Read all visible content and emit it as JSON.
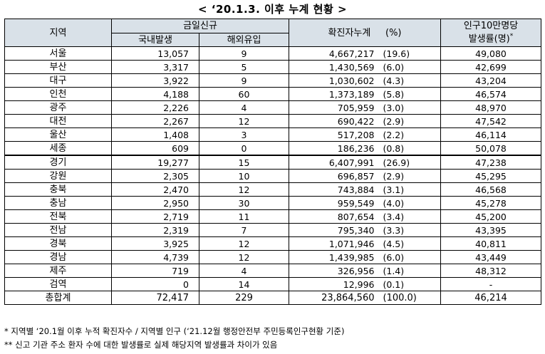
{
  "title": "< ‘20.1.3. 이후 누계 현황 >",
  "headers": {
    "region": "지역",
    "today_new": "금일신규",
    "domestic": "국내발생",
    "overseas": "해외유입",
    "cumulative": "확진자누계",
    "percent": "(%)",
    "rate_line1": "인구10만명당",
    "rate_line2": "발생률(명)",
    "rate_mark": "*"
  },
  "rows": [
    {
      "region": "서울",
      "domestic": "13,057",
      "overseas": "9",
      "cumulative": "4,667,217",
      "percent": "(19.6)",
      "rate": "49,080"
    },
    {
      "region": "부산",
      "domestic": "3,317",
      "overseas": "5",
      "cumulative": "1,430,569",
      "percent": "(6.0)",
      "rate": "42,699"
    },
    {
      "region": "대구",
      "domestic": "3,922",
      "overseas": "9",
      "cumulative": "1,030,602",
      "percent": "(4.3)",
      "rate": "43,204"
    },
    {
      "region": "인천",
      "domestic": "4,188",
      "overseas": "60",
      "cumulative": "1,373,189",
      "percent": "(5.8)",
      "rate": "46,574"
    },
    {
      "region": "광주",
      "domestic": "2,226",
      "overseas": "4",
      "cumulative": "705,959",
      "percent": "(3.0)",
      "rate": "48,970"
    },
    {
      "region": "대전",
      "domestic": "2,267",
      "overseas": "12",
      "cumulative": "690,422",
      "percent": "(2.9)",
      "rate": "47,542"
    },
    {
      "region": "울산",
      "domestic": "1,408",
      "overseas": "3",
      "cumulative": "517,208",
      "percent": "(2.2)",
      "rate": "46,114"
    },
    {
      "region": "세종",
      "domestic": "609",
      "overseas": "0",
      "cumulative": "186,236",
      "percent": "(0.8)",
      "rate": "50,078"
    },
    {
      "region": "경기",
      "domestic": "19,277",
      "overseas": "15",
      "cumulative": "6,407,991",
      "percent": "(26.9)",
      "rate": "47,238"
    },
    {
      "region": "강원",
      "domestic": "2,305",
      "overseas": "10",
      "cumulative": "696,857",
      "percent": "(2.9)",
      "rate": "45,295"
    },
    {
      "region": "충북",
      "domestic": "2,470",
      "overseas": "12",
      "cumulative": "743,884",
      "percent": "(3.1)",
      "rate": "46,568"
    },
    {
      "region": "충남",
      "domestic": "2,950",
      "overseas": "30",
      "cumulative": "959,549",
      "percent": "(4.0)",
      "rate": "45,278"
    },
    {
      "region": "전북",
      "domestic": "2,719",
      "overseas": "11",
      "cumulative": "807,654",
      "percent": "(3.4)",
      "rate": "45,200"
    },
    {
      "region": "전남",
      "domestic": "2,319",
      "overseas": "7",
      "cumulative": "795,340",
      "percent": "(3.3)",
      "rate": "43,395"
    },
    {
      "region": "경북",
      "domestic": "3,925",
      "overseas": "12",
      "cumulative": "1,071,946",
      "percent": "(4.5)",
      "rate": "40,811"
    },
    {
      "region": "경남",
      "domestic": "4,739",
      "overseas": "12",
      "cumulative": "1,439,985",
      "percent": "(6.0)",
      "rate": "43,449"
    },
    {
      "region": "제주",
      "domestic": "719",
      "overseas": "4",
      "cumulative": "326,956",
      "percent": "(1.4)",
      "rate": "48,312"
    },
    {
      "region": "검역",
      "domestic": "0",
      "overseas": "14",
      "cumulative": "12,996",
      "percent": "(0.1)",
      "rate": "-"
    }
  ],
  "total": {
    "region": "총합계",
    "domestic": "72,417",
    "overseas": "229",
    "cumulative": "23,864,560",
    "percent": "(100.0)",
    "rate": "46,214"
  },
  "notes": [
    "* 지역별 ‘20.1월 이후 누적 확진자수 / 지역별 인구 (‘21.12월 행정안전부 주민등록인구현황 기준)",
    "** 신고 기관 주소 환자 수에 대한 발생률로 실제 해당지역 발생률과 차이가 있음"
  ]
}
